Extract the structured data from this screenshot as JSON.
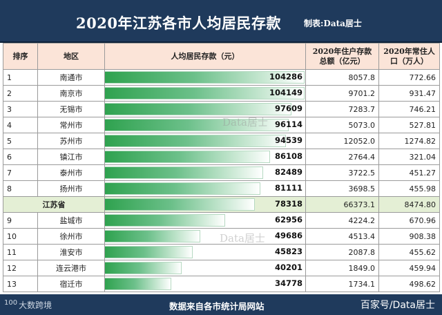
{
  "header": {
    "title": "2020年江苏各市人均居民存款",
    "maker": "制表:Data居士"
  },
  "table": {
    "columns": [
      "排序",
      "地区",
      "人均居民存款（元）",
      "2020年住户存款总额（亿元）",
      "2020年常住人口（万人）"
    ],
    "rows": [
      {
        "rank": "1",
        "region": "南通市",
        "per_capita": "104286",
        "deposits": "8057.8",
        "population": "772.66"
      },
      {
        "rank": "2",
        "region": "南京市",
        "per_capita": "104149",
        "deposits": "9701.2",
        "population": "931.47"
      },
      {
        "rank": "3",
        "region": "无锡市",
        "per_capita": "97609",
        "deposits": "7283.7",
        "population": "746.21"
      },
      {
        "rank": "4",
        "region": "常州市",
        "per_capita": "96114",
        "deposits": "5073.0",
        "population": "527.81"
      },
      {
        "rank": "5",
        "region": "苏州市",
        "per_capita": "94539",
        "deposits": "12052.0",
        "population": "1274.82"
      },
      {
        "rank": "6",
        "region": "镇江市",
        "per_capita": "86108",
        "deposits": "2764.4",
        "population": "321.04"
      },
      {
        "rank": "7",
        "region": "泰州市",
        "per_capita": "82489",
        "deposits": "3722.5",
        "population": "451.27"
      },
      {
        "rank": "8",
        "region": "扬州市",
        "per_capita": "81111",
        "deposits": "3698.5",
        "population": "455.98"
      },
      {
        "rank": "",
        "region": "江苏省",
        "per_capita": "78318",
        "deposits": "66373.1",
        "population": "8474.80",
        "is_province": true
      },
      {
        "rank": "9",
        "region": "盐城市",
        "per_capita": "62956",
        "deposits": "4224.2",
        "population": "670.96"
      },
      {
        "rank": "10",
        "region": "徐州市",
        "per_capita": "49686",
        "deposits": "4513.4",
        "population": "908.38"
      },
      {
        "rank": "11",
        "region": "淮安市",
        "per_capita": "45823",
        "deposits": "2087.8",
        "population": "455.62"
      },
      {
        "rank": "12",
        "region": "连云港市",
        "per_capita": "40201",
        "deposits": "1849.0",
        "population": "459.94"
      },
      {
        "rank": "13",
        "region": "宿迁市",
        "per_capita": "34778",
        "deposits": "1734.1",
        "population": "498.62"
      }
    ],
    "bar_max": 104286,
    "bar_color": "#2fa24f"
  },
  "watermarks": [
    "Data居士",
    "Data居士"
  ],
  "footer": {
    "logo_mark": "100",
    "logo_text": "大数跨境",
    "source": "数据来自各市统计局网站",
    "credit": "百家号/Data居士"
  },
  "colors": {
    "title_bg": "#1f3a5c",
    "header_bg": "#fbe4d8",
    "province_bg": "#e4efd5"
  }
}
